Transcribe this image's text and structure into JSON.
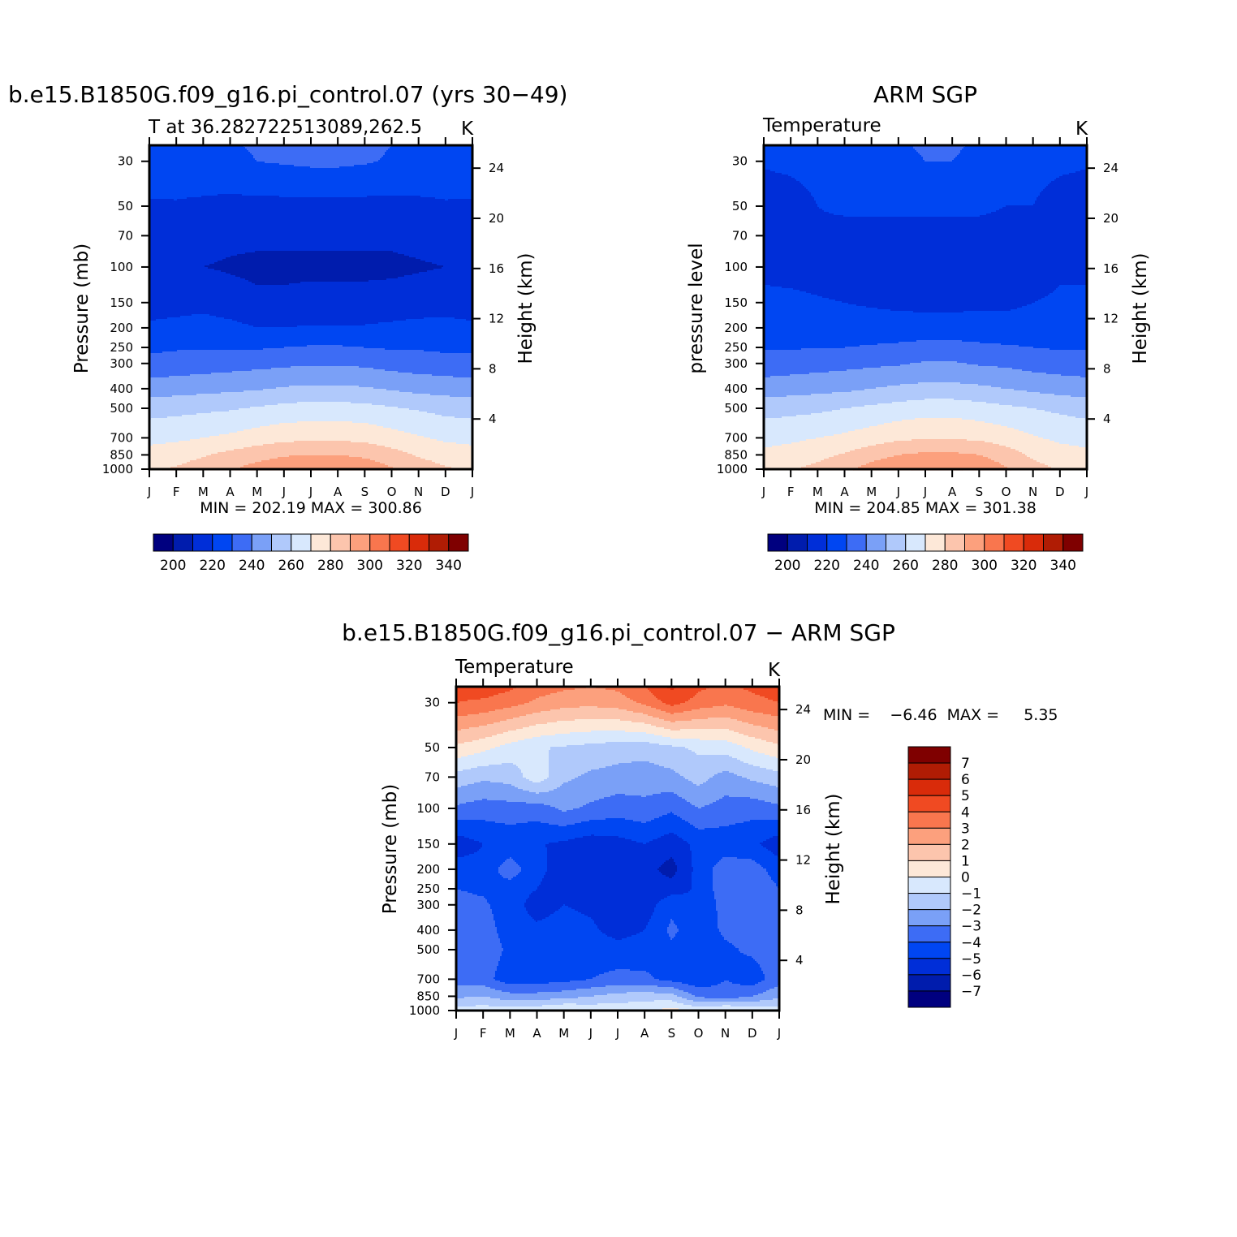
{
  "colors": {
    "temperature_levels": [
      "#00007f",
      "#001cad",
      "#002ed8",
      "#0046f2",
      "#3d6cf5",
      "#7aa0f7",
      "#b0c9fb",
      "#d8e8fd",
      "#fde8d8",
      "#fcc5ad",
      "#fca07d",
      "#f9764e",
      "#f04a22",
      "#d92b0a",
      "#b01c04",
      "#7f0000"
    ],
    "difference_levels": [
      "#00007f",
      "#001cad",
      "#002ed8",
      "#0046f2",
      "#3d6cf5",
      "#7aa0f7",
      "#b0c9fb",
      "#d8e8fd",
      "#fde8d8",
      "#fcc5ad",
      "#fca07d",
      "#f9764e",
      "#f04a22",
      "#d92b0a",
      "#b01c04",
      "#7f0000"
    ]
  },
  "chart_data": [
    {
      "type": "heatmap",
      "title": "b.e15.B1850G.f09_g16.pi_control.07 (yrs 30−49)",
      "subtitle_left": "T at 36.282722513089,262.5",
      "units": "K",
      "ylabel": "Pressure (mb)",
      "ylabel_right": "Height (km)",
      "months": [
        "J",
        "F",
        "M",
        "A",
        "M",
        "J",
        "J",
        "A",
        "S",
        "O",
        "N",
        "D",
        "J"
      ],
      "pressure_ticks": [
        30,
        50,
        70,
        100,
        150,
        200,
        250,
        300,
        400,
        500,
        700,
        850,
        1000
      ],
      "height_ticks": [
        24,
        20,
        16,
        12,
        8,
        4
      ],
      "ylim": [
        1000,
        25
      ],
      "stats": "MIN =  202.19  MAX =  300.86",
      "colorbar": {
        "levels": [
          200,
          220,
          240,
          260,
          280,
          300,
          320,
          340
        ],
        "step": 10,
        "range": [
          190,
          350
        ]
      },
      "levels_for_values": [
        25,
        30,
        50,
        70,
        100,
        150,
        200,
        250,
        300,
        400,
        500,
        700,
        850,
        1000
      ],
      "values_jan_to_jan": [
        [
          226,
          227,
          228,
          229,
          231,
          232,
          233,
          233,
          232,
          230,
          228,
          227,
          226
        ],
        [
          225,
          226,
          227,
          228,
          230,
          231,
          232,
          232,
          231,
          229,
          227,
          226,
          225
        ],
        [
          219,
          219,
          218,
          217,
          217,
          217,
          217,
          217,
          217,
          217,
          218,
          219,
          219
        ],
        [
          214,
          214,
          213,
          212,
          212,
          212,
          212,
          212,
          212,
          212,
          213,
          214,
          214
        ],
        [
          211,
          211,
          210,
          209,
          208,
          208,
          208,
          208,
          208,
          208,
          209,
          210,
          211
        ],
        [
          215,
          216,
          217,
          214,
          212,
          212,
          213,
          213,
          213,
          214,
          215,
          216,
          215
        ],
        [
          222,
          223,
          224,
          223,
          220,
          220,
          221,
          221,
          221,
          222,
          223,
          223,
          222
        ],
        [
          228,
          229,
          229,
          229,
          229,
          230,
          231,
          231,
          230,
          229,
          229,
          228,
          228
        ],
        [
          233,
          234,
          235,
          236,
          237,
          238,
          239,
          239,
          238,
          236,
          235,
          234,
          233
        ],
        [
          245,
          246,
          247,
          248,
          249,
          251,
          252,
          252,
          251,
          249,
          247,
          246,
          245
        ],
        [
          256,
          257,
          258,
          259,
          261,
          263,
          264,
          264,
          263,
          261,
          259,
          257,
          256
        ],
        [
          267,
          268,
          270,
          272,
          275,
          277,
          278,
          278,
          277,
          274,
          271,
          268,
          267
        ],
        [
          274,
          276,
          279,
          283,
          286,
          289,
          290,
          290,
          288,
          284,
          279,
          276,
          274
        ],
        [
          279,
          281,
          285,
          289,
          294,
          298,
          300,
          300,
          297,
          291,
          285,
          281,
          279
        ]
      ]
    },
    {
      "type": "heatmap",
      "title": "ARM SGP",
      "subtitle_left": "Temperature",
      "units": "K",
      "ylabel": "pressure level",
      "ylabel_right": "Height (km)",
      "months": [
        "J",
        "F",
        "M",
        "A",
        "M",
        "J",
        "J",
        "A",
        "S",
        "O",
        "N",
        "D",
        "J"
      ],
      "pressure_ticks": [
        30,
        50,
        70,
        100,
        150,
        200,
        250,
        300,
        400,
        500,
        700,
        850,
        1000
      ],
      "height_ticks": [
        24,
        20,
        16,
        12,
        8,
        4
      ],
      "ylim": [
        1000,
        25
      ],
      "stats": "MIN =  204.85  MAX =  301.38",
      "colorbar": {
        "levels": [
          200,
          220,
          240,
          260,
          280,
          300,
          320,
          340
        ],
        "step": 10,
        "range": [
          190,
          350
        ]
      },
      "levels_for_values": [
        25,
        30,
        50,
        70,
        100,
        150,
        200,
        250,
        300,
        400,
        500,
        700,
        850,
        1000
      ],
      "values_jan_to_jan": [
        [
          222,
          223,
          224,
          225,
          227,
          229,
          231,
          231,
          229,
          226,
          224,
          223,
          222
        ],
        [
          221,
          222,
          223,
          224,
          226,
          228,
          230,
          230,
          228,
          225,
          223,
          222,
          221
        ],
        [
          215,
          216,
          220,
          221,
          221,
          221,
          221,
          221,
          221,
          220,
          220,
          216,
          215
        ],
        [
          212,
          214,
          219,
          218,
          218,
          218,
          218,
          218,
          218,
          218,
          218,
          213,
          212
        ],
        [
          218,
          217,
          216,
          214,
          212,
          211,
          211,
          211,
          211,
          211,
          213,
          218,
          218
        ],
        [
          222,
          222,
          221,
          220,
          219,
          218,
          217,
          217,
          218,
          218,
          220,
          222,
          222
        ],
        [
          224,
          224,
          224,
          224,
          224,
          224,
          225,
          225,
          224,
          224,
          224,
          224,
          224
        ],
        [
          229,
          229,
          230,
          230,
          231,
          232,
          233,
          233,
          232,
          231,
          230,
          229,
          229
        ],
        [
          234,
          235,
          236,
          237,
          238,
          239,
          241,
          241,
          239,
          238,
          236,
          235,
          234
        ],
        [
          245,
          246,
          247,
          248,
          250,
          252,
          253,
          253,
          252,
          250,
          248,
          246,
          245
        ],
        [
          256,
          257,
          258,
          260,
          262,
          264,
          266,
          266,
          264,
          262,
          260,
          258,
          256
        ],
        [
          267,
          268,
          270,
          272,
          275,
          278,
          279,
          279,
          278,
          275,
          271,
          268,
          267
        ],
        [
          272,
          274,
          277,
          281,
          286,
          290,
          292,
          292,
          290,
          285,
          278,
          274,
          272
        ],
        [
          276,
          279,
          283,
          288,
          294,
          299,
          301,
          301,
          298,
          291,
          284,
          279,
          276
        ]
      ]
    },
    {
      "type": "heatmap",
      "title": "b.e15.B1850G.f09_g16.pi_control.07 − ARM SGP",
      "subtitle_left": "Temperature",
      "units": "K",
      "ylabel": "Pressure (mb)",
      "ylabel_right": "Height (km)",
      "months": [
        "J",
        "F",
        "M",
        "A",
        "M",
        "J",
        "J",
        "A",
        "S",
        "O",
        "N",
        "D",
        "J"
      ],
      "pressure_ticks": [
        30,
        50,
        70,
        100,
        150,
        200,
        250,
        300,
        400,
        500,
        700,
        850,
        1000
      ],
      "height_ticks": [
        24,
        20,
        16,
        12,
        8,
        4
      ],
      "ylim": [
        1000,
        25
      ],
      "stats": "MIN =    −6.46  MAX =     5.35",
      "colorbar": {
        "labels": [
          7,
          6,
          5,
          4,
          3,
          2,
          1,
          0,
          -1,
          -2,
          -3,
          -4,
          -5,
          -6,
          -7
        ],
        "range": [
          -8,
          8
        ]
      },
      "levels_for_values": [
        25,
        30,
        50,
        70,
        100,
        150,
        200,
        250,
        300,
        400,
        500,
        700,
        850,
        1000
      ],
      "values_jan_to_jan": [
        [
          4.5,
          4.6,
          4.2,
          3.5,
          3.2,
          3.0,
          3.2,
          4.0,
          5.2,
          4.2,
          3.8,
          4.2,
          4.5
        ],
        [
          4.0,
          3.8,
          3.4,
          2.8,
          2.4,
          2.3,
          2.5,
          3.2,
          4.4,
          3.6,
          3.2,
          3.7,
          4.0
        ],
        [
          0.8,
          0.3,
          -0.4,
          -0.9,
          -1.1,
          -1.3,
          -1.5,
          -1.6,
          -1.2,
          -0.8,
          -0.6,
          0.2,
          0.8
        ],
        [
          -1.4,
          -1.8,
          -1.6,
          -0.4,
          -1.8,
          -2.2,
          -2.4,
          -2.5,
          -2.3,
          -1.6,
          -2.4,
          -1.8,
          -1.4
        ],
        [
          -3.2,
          -3.5,
          -3.4,
          -3.5,
          -2.8,
          -3.2,
          -3.5,
          -3.3,
          -3.8,
          -3.0,
          -3.4,
          -3.6,
          -3.2
        ],
        [
          -5.6,
          -5.0,
          -4.7,
          -4.9,
          -5.2,
          -5.6,
          -5.4,
          -5.0,
          -5.6,
          -4.7,
          -4.6,
          -4.8,
          -5.6
        ],
        [
          -4.5,
          -4.7,
          -3.4,
          -4.8,
          -5.3,
          -5.4,
          -5.8,
          -5.6,
          -6.4,
          -4.6,
          -3.4,
          -3.5,
          -4.5
        ],
        [
          -4.0,
          -4.2,
          -4.5,
          -5.0,
          -5.4,
          -5.6,
          -6.0,
          -5.8,
          -5.5,
          -4.8,
          -3.3,
          -3.2,
          -4.0
        ],
        [
          -3.6,
          -3.8,
          -4.6,
          -5.4,
          -5.0,
          -5.2,
          -5.8,
          -5.6,
          -4.2,
          -5.0,
          -3.5,
          -3.4,
          -3.6
        ],
        [
          -3.3,
          -3.5,
          -4.5,
          -4.8,
          -4.6,
          -4.8,
          -5.4,
          -5.0,
          -3.8,
          -4.6,
          -3.8,
          -3.6,
          -3.3
        ],
        [
          -3.3,
          -3.4,
          -4.2,
          -4.6,
          -4.5,
          -4.5,
          -4.6,
          -4.5,
          -4.2,
          -4.6,
          -4.2,
          -3.8,
          -3.3
        ],
        [
          -3.4,
          -3.6,
          -4.6,
          -4.5,
          -4.3,
          -4.0,
          -3.7,
          -3.8,
          -4.3,
          -4.8,
          -4.0,
          -4.6,
          -3.4
        ],
        [
          -2.2,
          -2.0,
          -2.6,
          -2.6,
          -2.4,
          -2.0,
          -1.6,
          -1.4,
          -1.6,
          -3.2,
          -3.6,
          -3.0,
          -2.2
        ],
        [
          -0.6,
          -0.4,
          -0.5,
          -0.3,
          0.2,
          -0.2,
          -0.4,
          -0.2,
          0.4,
          -0.2,
          0.4,
          -0.2,
          -0.6
        ]
      ]
    }
  ]
}
